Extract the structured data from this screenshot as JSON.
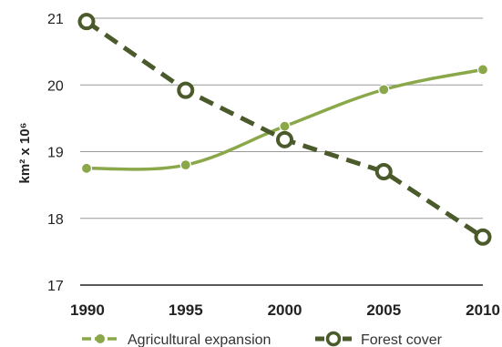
{
  "chart_data": {
    "type": "line",
    "title": "",
    "xlabel": "",
    "ylabel": "km² x 10⁶",
    "x": [
      1990,
      1995,
      2000,
      2005,
      2010
    ],
    "ylim": [
      17,
      21
    ],
    "yticks": [
      "17",
      "18",
      "19",
      "20",
      "21"
    ],
    "grid": "horizontal",
    "legend": "bottom",
    "series": [
      {
        "name": "Agricultural expansion",
        "values": [
          18.75,
          18.8,
          19.38,
          19.93,
          20.23
        ],
        "color": "#8aa84a",
        "style": "solid",
        "marker": "filled-circle"
      },
      {
        "name": "Forest cover",
        "values": [
          20.95,
          19.92,
          19.18,
          18.7,
          17.72
        ],
        "color": "#4a5a2a",
        "style": "dashed",
        "marker": "open-circle"
      }
    ]
  }
}
